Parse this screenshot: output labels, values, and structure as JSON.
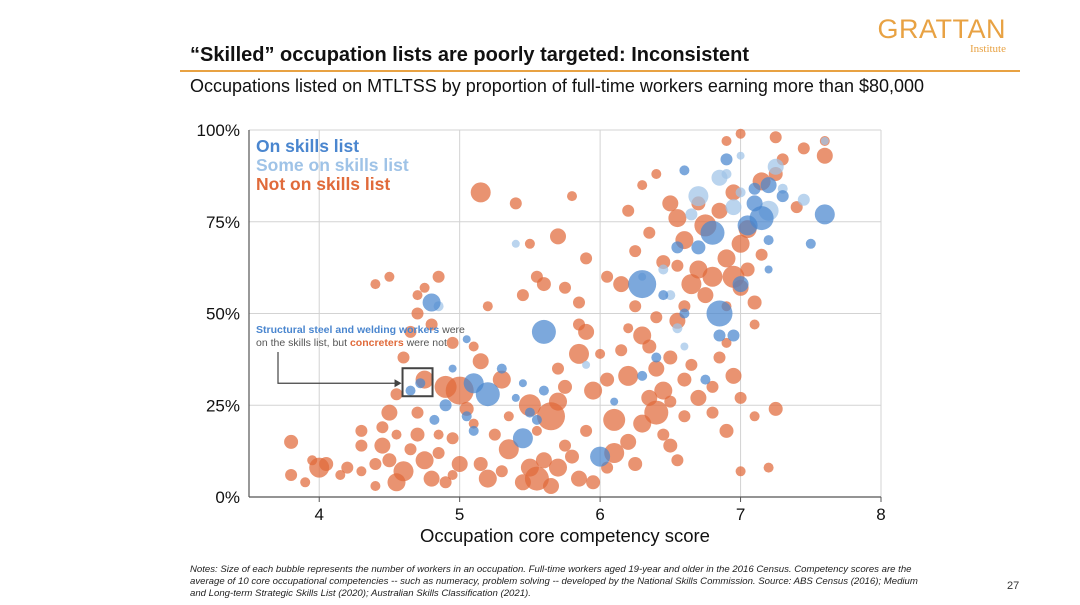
{
  "slide": {
    "title": "“Skilled” occupation lists are poorly targeted: Inconsistent",
    "subtitle": "Occupations listed on MTLTSS by proportion of full-time workers earning more than $80,000",
    "notes": "Notes: Size of each bubble represents the number of workers in an occupation. Full-time workers aged 19-year and older in the 2016 Census. Competency scores are the average of 10 core occupational competencies -- such as numeracy, problem solving -- developed by the National Skills Commission. Source: ABS Census (2016); Medium and Long-term Strategic Skills List (2020); Australian Skills Classification (2021).",
    "page_number": "27"
  },
  "logo": {
    "name": "GRATTAN",
    "sub": "Institute",
    "color": "#e8a243"
  },
  "chart_data": {
    "type": "scatter",
    "xlabel": "Occupation core competency score",
    "ylabel": "",
    "xlim": [
      3.5,
      8
    ],
    "ylim": [
      0,
      100
    ],
    "x_ticks": [
      4,
      5,
      6,
      7,
      8
    ],
    "y_ticks": [
      0,
      25,
      50,
      75,
      100
    ],
    "y_tick_labels": [
      "0%",
      "25%",
      "50%",
      "75%",
      "100%"
    ],
    "grid": true,
    "legend_position": "top-left",
    "annotation": {
      "text_part1": "Structural steel and welding workers",
      "text_part2": " were on the skills list, but ",
      "text_part3": "concreters",
      "text_part4": " were not",
      "box_x": 4.7,
      "box_y": 31
    },
    "series": [
      {
        "name": "On skills list",
        "color": "#4a86cf",
        "points": [
          [
            5.6,
            45,
            12
          ],
          [
            5.1,
            31,
            10
          ],
          [
            5.2,
            28,
            12
          ],
          [
            4.9,
            25,
            6
          ],
          [
            5.05,
            22,
            5
          ],
          [
            4.82,
            21,
            5
          ],
          [
            5.1,
            18,
            5
          ],
          [
            5.45,
            16,
            10
          ],
          [
            5.6,
            29,
            5
          ],
          [
            6,
            11,
            10
          ],
          [
            5.45,
            31,
            4
          ],
          [
            4.8,
            53,
            9
          ],
          [
            6.3,
            58,
            14
          ],
          [
            6.45,
            55,
            5
          ],
          [
            6.6,
            50,
            5
          ],
          [
            6.85,
            50,
            13
          ],
          [
            6.85,
            44,
            6
          ],
          [
            6.95,
            44,
            6
          ],
          [
            6.8,
            72,
            12
          ],
          [
            6.7,
            68,
            7
          ],
          [
            6.55,
            68,
            6
          ],
          [
            7.05,
            74,
            10
          ],
          [
            7.1,
            80,
            8
          ],
          [
            7.15,
            76,
            12
          ],
          [
            7.2,
            70,
            5
          ],
          [
            7.1,
            84,
            6
          ],
          [
            7.2,
            85,
            8
          ],
          [
            7.3,
            82,
            6
          ],
          [
            7.0,
            58,
            8
          ],
          [
            6.75,
            32,
            5
          ],
          [
            7.6,
            77,
            10
          ],
          [
            7.5,
            69,
            5
          ],
          [
            6.4,
            38,
            5
          ],
          [
            6.6,
            89,
            5
          ],
          [
            7.2,
            62,
            4
          ],
          [
            6.9,
            92,
            6
          ],
          [
            5.3,
            35,
            5
          ],
          [
            4.65,
            29,
            5
          ],
          [
            4.95,
            35,
            4
          ],
          [
            5.05,
            43,
            4
          ],
          [
            5.4,
            27,
            4
          ],
          [
            5.5,
            23,
            5
          ],
          [
            5.55,
            21,
            5
          ],
          [
            6.1,
            26,
            4
          ],
          [
            6.3,
            33,
            5
          ],
          [
            4.72,
            31,
            5
          ]
        ]
      },
      {
        "name": "Some on skills list",
        "color": "#9fc3e7",
        "points": [
          [
            6.7,
            82,
            10
          ],
          [
            6.85,
            87,
            8
          ],
          [
            7.25,
            90,
            8
          ],
          [
            6.95,
            79,
            8
          ],
          [
            6.65,
            77,
            6
          ],
          [
            7.2,
            78,
            10
          ],
          [
            7.45,
            81,
            6
          ],
          [
            7.0,
            83,
            5
          ],
          [
            6.5,
            55,
            5
          ],
          [
            6.55,
            46,
            5
          ],
          [
            7.0,
            93,
            4
          ],
          [
            7.6,
            97,
            4
          ],
          [
            6.3,
            60,
            4
          ],
          [
            4.85,
            52,
            5
          ],
          [
            5.4,
            69,
            4
          ],
          [
            6.45,
            62,
            5
          ],
          [
            6.9,
            88,
            5
          ],
          [
            7.3,
            84,
            5
          ],
          [
            6.6,
            41,
            4
          ],
          [
            5.9,
            36,
            4
          ]
        ]
      },
      {
        "name": "Not on skills list",
        "color": "#e06a3a",
        "points": [
          [
            3.8,
            15,
            7
          ],
          [
            3.8,
            6,
            6
          ],
          [
            3.9,
            4,
            5
          ],
          [
            4,
            8,
            10
          ],
          [
            4.05,
            9,
            7
          ],
          [
            4.2,
            8,
            6
          ],
          [
            4.3,
            14,
            6
          ],
          [
            4.3,
            7,
            5
          ],
          [
            4.4,
            3,
            5
          ],
          [
            4.4,
            9,
            6
          ],
          [
            4.45,
            14,
            8
          ],
          [
            4.5,
            10,
            7
          ],
          [
            4.55,
            4,
            9
          ],
          [
            4.6,
            7,
            10
          ],
          [
            4.65,
            13,
            6
          ],
          [
            4.7,
            17,
            7
          ],
          [
            4.75,
            10,
            9
          ],
          [
            4.8,
            5,
            8
          ],
          [
            4.85,
            12,
            6
          ],
          [
            4.9,
            4,
            6
          ],
          [
            4.95,
            16,
            6
          ],
          [
            5.0,
            9,
            8
          ],
          [
            5.05,
            24,
            7
          ],
          [
            5.1,
            20,
            5
          ],
          [
            5.15,
            9,
            7
          ],
          [
            5.2,
            5,
            9
          ],
          [
            5.25,
            17,
            6
          ],
          [
            5.3,
            7,
            6
          ],
          [
            5.35,
            13,
            10
          ],
          [
            5.45,
            4,
            8
          ],
          [
            5.5,
            8,
            9
          ],
          [
            5.55,
            5,
            12
          ],
          [
            5.6,
            10,
            8
          ],
          [
            5.65,
            3,
            8
          ],
          [
            5.7,
            8,
            9
          ],
          [
            5.75,
            14,
            6
          ],
          [
            5.8,
            11,
            7
          ],
          [
            5.85,
            5,
            8
          ],
          [
            5.9,
            18,
            6
          ],
          [
            5.95,
            4,
            7
          ],
          [
            6.05,
            8,
            6
          ],
          [
            6.1,
            12,
            10
          ],
          [
            6.2,
            15,
            8
          ],
          [
            6.25,
            9,
            7
          ],
          [
            6.3,
            20,
            9
          ],
          [
            6.35,
            27,
            8
          ],
          [
            6.4,
            23,
            12
          ],
          [
            6.45,
            17,
            6
          ],
          [
            6.5,
            14,
            7
          ],
          [
            6.55,
            10,
            6
          ],
          [
            6.6,
            22,
            6
          ],
          [
            6.7,
            27,
            8
          ],
          [
            6.8,
            30,
            6
          ],
          [
            6.85,
            38,
            6
          ],
          [
            6.9,
            18,
            7
          ],
          [
            6.95,
            33,
            8
          ],
          [
            7.0,
            27,
            6
          ],
          [
            7.0,
            7,
            5
          ],
          [
            7.1,
            22,
            5
          ],
          [
            7.2,
            8,
            5
          ],
          [
            7.25,
            24,
            7
          ],
          [
            5.65,
            22,
            14
          ],
          [
            5.7,
            26,
            9
          ],
          [
            5.75,
            30,
            7
          ],
          [
            5.5,
            25,
            11
          ],
          [
            5.3,
            32,
            9
          ],
          [
            5.15,
            37,
            8
          ],
          [
            5.0,
            29,
            14
          ],
          [
            4.9,
            30,
            11
          ],
          [
            4.75,
            32,
            9
          ],
          [
            4.6,
            38,
            6
          ],
          [
            4.55,
            28,
            6
          ],
          [
            4.5,
            23,
            8
          ],
          [
            4.45,
            19,
            6
          ],
          [
            4.65,
            45,
            6
          ],
          [
            4.8,
            47,
            6
          ],
          [
            4.85,
            60,
            6
          ],
          [
            4.75,
            57,
            5
          ],
          [
            4.7,
            50,
            6
          ],
          [
            4.95,
            42,
            6
          ],
          [
            5.1,
            41,
            5
          ],
          [
            5.85,
            39,
            10
          ],
          [
            5.95,
            29,
            9
          ],
          [
            6.05,
            32,
            7
          ],
          [
            6.1,
            21,
            11
          ],
          [
            6.2,
            33,
            10
          ],
          [
            6.3,
            44,
            9
          ],
          [
            6.35,
            41,
            7
          ],
          [
            6.4,
            35,
            8
          ],
          [
            6.45,
            29,
            9
          ],
          [
            6.5,
            38,
            7
          ],
          [
            6.55,
            48,
            8
          ],
          [
            6.6,
            52,
            6
          ],
          [
            6.65,
            58,
            10
          ],
          [
            6.7,
            62,
            9
          ],
          [
            6.75,
            55,
            8
          ],
          [
            6.8,
            60,
            10
          ],
          [
            6.9,
            65,
            9
          ],
          [
            6.95,
            60,
            11
          ],
          [
            7.0,
            57,
            8
          ],
          [
            7.05,
            62,
            7
          ],
          [
            7.1,
            53,
            7
          ],
          [
            7.15,
            66,
            6
          ],
          [
            6.6,
            70,
            9
          ],
          [
            6.55,
            76,
            9
          ],
          [
            6.5,
            80,
            8
          ],
          [
            6.7,
            80,
            7
          ],
          [
            6.75,
            74,
            11
          ],
          [
            6.85,
            78,
            8
          ],
          [
            6.95,
            83,
            8
          ],
          [
            7.0,
            69,
            9
          ],
          [
            7.05,
            73,
            9
          ],
          [
            7.15,
            86,
            9
          ],
          [
            7.25,
            88,
            7
          ],
          [
            7.3,
            92,
            6
          ],
          [
            7.4,
            79,
            6
          ],
          [
            7.45,
            95,
            6
          ],
          [
            7.6,
            93,
            8
          ],
          [
            7.6,
            97,
            5
          ],
          [
            7.25,
            98,
            6
          ],
          [
            7.0,
            99,
            5
          ],
          [
            6.9,
            97,
            5
          ],
          [
            5.15,
            83,
            10
          ],
          [
            5.4,
            80,
            6
          ],
          [
            5.8,
            82,
            5
          ],
          [
            5.7,
            71,
            8
          ],
          [
            5.5,
            69,
            5
          ],
          [
            5.55,
            60,
            6
          ],
          [
            5.6,
            58,
            7
          ],
          [
            5.45,
            55,
            6
          ],
          [
            5.75,
            57,
            6
          ],
          [
            5.85,
            53,
            6
          ],
          [
            5.9,
            65,
            6
          ],
          [
            6.05,
            60,
            6
          ],
          [
            6.15,
            58,
            8
          ],
          [
            6.25,
            67,
            6
          ],
          [
            6.35,
            72,
            6
          ],
          [
            6.45,
            64,
            7
          ],
          [
            6.55,
            63,
            6
          ],
          [
            6.2,
            78,
            6
          ],
          [
            6.3,
            85,
            5
          ],
          [
            6.4,
            88,
            5
          ],
          [
            5.85,
            47,
            6
          ],
          [
            6.2,
            46,
            5
          ],
          [
            6.0,
            39,
            5
          ],
          [
            4.85,
            17,
            5
          ],
          [
            4.7,
            23,
            6
          ],
          [
            5.2,
            52,
            5
          ],
          [
            4.4,
            58,
            5
          ],
          [
            4.5,
            60,
            5
          ],
          [
            4.7,
            55,
            5
          ],
          [
            4.3,
            18,
            6
          ],
          [
            3.95,
            10,
            5
          ],
          [
            4.15,
            6,
            5
          ],
          [
            4.55,
            17,
            5
          ],
          [
            4.95,
            6,
            5
          ],
          [
            5.35,
            22,
            5
          ],
          [
            5.55,
            18,
            5
          ],
          [
            5.7,
            35,
            6
          ],
          [
            6.15,
            40,
            6
          ],
          [
            6.4,
            49,
            6
          ],
          [
            6.5,
            26,
            6
          ],
          [
            6.6,
            32,
            7
          ],
          [
            6.65,
            36,
            6
          ],
          [
            6.8,
            23,
            6
          ],
          [
            6.9,
            42,
            5
          ],
          [
            7.1,
            47,
            5
          ],
          [
            6.9,
            52,
            5
          ],
          [
            6.25,
            52,
            6
          ],
          [
            5.9,
            45,
            8
          ]
        ]
      }
    ]
  }
}
